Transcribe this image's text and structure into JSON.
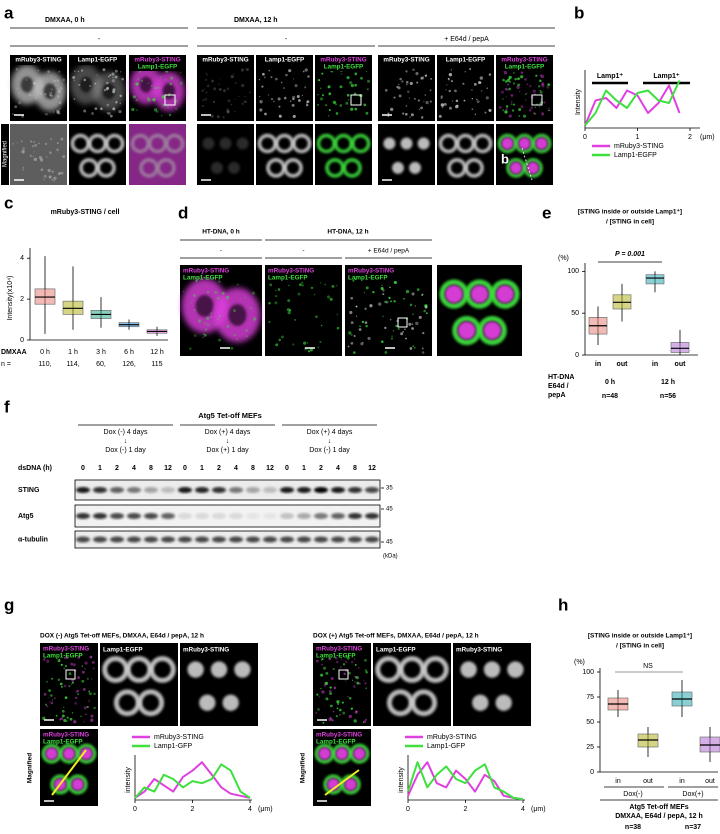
{
  "figure": {
    "a": {
      "label": "a",
      "conditions": [
        "DMXAA, 0 h",
        "DMXAA, 12 h"
      ],
      "treatments": [
        "-",
        "-",
        "+ E64d / pepA"
      ],
      "channels": [
        "mRuby3-STING",
        "Lamp1-EGFP"
      ],
      "row_label": "Magnified",
      "inset_label": "b"
    },
    "b": {
      "label": "b",
      "segments": [
        "Lamp1⁺",
        "Lamp1⁺"
      ],
      "y_label": "Intensity",
      "x_unit": "(μm)",
      "xlim": [
        0,
        2
      ],
      "xticks": [
        0,
        1,
        2
      ],
      "ylim": [
        0,
        1
      ],
      "series": [
        {
          "name": "mRuby3-STING",
          "color": "#e040e0",
          "x": [
            0,
            0.2,
            0.4,
            0.6,
            0.8,
            1,
            1.2,
            1.4,
            1.6,
            1.8
          ],
          "values": [
            0.05,
            0.55,
            0.6,
            0.4,
            0.75,
            0.65,
            0.3,
            0.5,
            0.85,
            0.3
          ]
        },
        {
          "name": "Lamp1-EGFP",
          "color": "#3ee03e",
          "x": [
            0,
            0.2,
            0.4,
            0.6,
            0.8,
            1,
            1.2,
            1.4,
            1.6,
            1.8
          ],
          "values": [
            0.05,
            0.3,
            0.75,
            0.55,
            0.4,
            0.7,
            0.75,
            0.55,
            0.5,
            0.95
          ]
        }
      ]
    },
    "c": {
      "label": "c",
      "title": "mRuby3-STING / cell",
      "y_label": "Intensity(x10⁴)",
      "ylim": [
        0,
        4.5
      ],
      "yticks": [
        0,
        2,
        4
      ],
      "x_label": "DMXAA",
      "categories": [
        "0 h",
        "1 h",
        "3 h",
        "6 h",
        "12 h"
      ],
      "n_label": "n =",
      "n": [
        "110,",
        "114,",
        "60,",
        "126,",
        "115"
      ],
      "colors": [
        "#e8837a",
        "#b5b324",
        "#2aa88a",
        "#2a8ad9",
        "#e062d8"
      ],
      "boxes": [
        {
          "q1": 1.75,
          "median": 2.1,
          "q3": 2.5,
          "min": 0.3,
          "max": 4.1
        },
        {
          "q1": 1.25,
          "median": 1.55,
          "q3": 1.9,
          "min": 0.5,
          "max": 3.6
        },
        {
          "q1": 1.05,
          "median": 1.25,
          "q3": 1.45,
          "min": 0.6,
          "max": 2.1
        },
        {
          "q1": 0.65,
          "median": 0.75,
          "q3": 0.85,
          "min": 0.5,
          "max": 1.0
        },
        {
          "q1": 0.33,
          "median": 0.42,
          "q3": 0.5,
          "min": 0.2,
          "max": 0.65
        }
      ]
    },
    "d": {
      "label": "d",
      "conditions": [
        "HT-DNA, 0 h",
        "HT-DNA, 12 h"
      ],
      "treatments": [
        "-",
        "-",
        "+ E64d / pepA"
      ],
      "channels": [
        "mRuby3-STING",
        "Lamp1-EGFP"
      ]
    },
    "e": {
      "label": "e",
      "title": [
        "[STING inside or outside Lamp1⁺]",
        "/ [STING in cell]"
      ],
      "y_unit": "(%)",
      "ylim": [
        0,
        110
      ],
      "yticks": [
        0,
        50,
        100
      ],
      "p_label": "P = 0.001",
      "categories": [
        "in",
        "out",
        "in",
        "out"
      ],
      "groups": [
        "0 h",
        "12 h"
      ],
      "n": [
        "n=48",
        "n=56"
      ],
      "row_labels": [
        "HT-DNA",
        "E64d /",
        "pepA"
      ],
      "colors": [
        "#e8837a",
        "#b5b324",
        "#2aa8b0",
        "#b070d0"
      ],
      "boxes": [
        {
          "q1": 25,
          "median": 35,
          "q3": 45,
          "min": 12,
          "max": 58
        },
        {
          "q1": 55,
          "median": 63,
          "q3": 72,
          "min": 40,
          "max": 85
        },
        {
          "q1": 85,
          "median": 92,
          "q3": 96,
          "min": 75,
          "max": 100
        },
        {
          "q1": 3,
          "median": 8,
          "q3": 15,
          "min": 0,
          "max": 30
        }
      ]
    },
    "f": {
      "label": "f",
      "title": "Atg5 Tet-off MEFs",
      "groups": [
        [
          "Dox (-)  4 days",
          "↓",
          "Dox (-)  1 day"
        ],
        [
          "Dox (+)  4 days",
          "↓",
          "Dox (+)  1 day"
        ],
        [
          "Dox (+)  4 days",
          "↓",
          "Dox (-)  1 day"
        ]
      ],
      "x_label": "dsDNA (h)",
      "lanes": [
        0,
        1,
        2,
        4,
        8,
        12
      ],
      "rows": [
        "STING",
        "Atg5",
        "α-tubulin"
      ],
      "markers": [
        "35",
        "45",
        "45"
      ],
      "marker_unit": "(kDa)",
      "band_intensity": [
        [
          0.9,
          0.8,
          0.6,
          0.5,
          0.3,
          0.2,
          0.9,
          0.85,
          0.8,
          0.5,
          0.3,
          0.2,
          0.9,
          0.9,
          1,
          0.9,
          0.8,
          0.7
        ],
        [
          0.8,
          0.8,
          0.7,
          0.7,
          0.7,
          0.6,
          0.1,
          0.1,
          0.1,
          0.1,
          0.05,
          0.05,
          0.2,
          0.3,
          0.5,
          0.6,
          0.8,
          0.8
        ],
        [
          0.7,
          0.7,
          0.7,
          0.7,
          0.7,
          0.7,
          0.7,
          0.7,
          0.7,
          0.7,
          0.7,
          0.7,
          0.7,
          0.7,
          0.7,
          0.7,
          0.7,
          0.7
        ]
      ]
    },
    "g": {
      "label": "g",
      "merge": [
        "mRuby3-STING",
        "Lamp1-EGFP"
      ],
      "channels": [
        "Lamp1-EGFP",
        "mRuby3-STING"
      ],
      "row_label": "Magnified",
      "y_label": "intensity",
      "xlim": [
        0,
        4
      ],
      "xticks": [
        0,
        2,
        4
      ],
      "x_unit": "(μm)",
      "ylim": [
        0,
        1
      ],
      "panels": [
        {
          "title": "DOX (-) Atg5 Tet-off MEFs, DMXAA, E64d / pepA, 12 h",
          "series": [
            {
              "name": "mRuby3-STING",
              "color": "#e040e0",
              "x": [
                0,
                0.33,
                0.67,
                1,
                1.33,
                1.67,
                2,
                2.33,
                2.67,
                3,
                3.33,
                3.67,
                4
              ],
              "values": [
                0.05,
                0.2,
                0.5,
                0.35,
                0.2,
                0.55,
                0.7,
                0.9,
                0.6,
                0.3,
                0.15,
                0.1,
                0.05
              ]
            },
            {
              "name": "Lamp1-GFP",
              "color": "#3ee03e",
              "x": [
                0,
                0.33,
                0.67,
                1,
                1.33,
                1.67,
                2,
                2.33,
                2.67,
                3,
                3.33,
                3.67,
                4
              ],
              "values": [
                0.05,
                0.3,
                0.2,
                0.6,
                0.5,
                0.3,
                0.45,
                0.4,
                0.5,
                0.85,
                0.7,
                0.2,
                0.05
              ]
            }
          ]
        },
        {
          "title": "DOX (+) Atg5 Tet-off MEFs, DMXAA, E64d / pepA, 12 h",
          "series": [
            {
              "name": "mRuby3-STING",
              "color": "#e040e0",
              "x": [
                0,
                0.33,
                0.67,
                1,
                1.33,
                1.67,
                2,
                2.33,
                2.67,
                3,
                3.33,
                3.67,
                4
              ],
              "values": [
                0.1,
                0.6,
                0.9,
                0.4,
                0.3,
                0.7,
                0.5,
                0.2,
                0.6,
                0.45,
                0.1,
                0.05,
                0.02
              ]
            },
            {
              "name": "Lamp1-GFP",
              "color": "#3ee03e",
              "x": [
                0,
                0.33,
                0.67,
                1,
                1.33,
                1.67,
                2,
                2.33,
                2.67,
                3,
                3.33,
                3.67,
                4
              ],
              "values": [
                0.2,
                0.9,
                0.3,
                0.6,
                0.8,
                0.5,
                0.4,
                0.7,
                0.85,
                0.3,
                0.2,
                0.05,
                0.02
              ]
            }
          ]
        }
      ]
    },
    "h": {
      "label": "h",
      "title": [
        "[STING inside or outside Lamp1⁺]",
        "/ [STING in cell]"
      ],
      "y_unit": "(%)",
      "ylim": [
        0,
        100
      ],
      "yticks": [
        0,
        25,
        50,
        75,
        100
      ],
      "ns_label": "NS",
      "categories": [
        "in",
        "out",
        "in",
        "out"
      ],
      "groups": [
        "Dox(-)",
        "Dox(+)"
      ],
      "footer": [
        "Atg5 Tet-off MEFs",
        "DMXAA, E64d / pepA, 12 h"
      ],
      "n": [
        "n=38",
        "n=37"
      ],
      "colors": [
        "#e8837a",
        "#b5b324",
        "#2aa8b0",
        "#b070d0"
      ],
      "boxes": [
        {
          "q1": 62,
          "median": 68,
          "q3": 74,
          "min": 55,
          "max": 82
        },
        {
          "q1": 25,
          "median": 32,
          "q3": 38,
          "min": 15,
          "max": 45
        },
        {
          "q1": 66,
          "median": 73,
          "q3": 80,
          "min": 55,
          "max": 92
        },
        {
          "q1": 20,
          "median": 27,
          "q3": 35,
          "min": 10,
          "max": 45
        }
      ]
    }
  }
}
